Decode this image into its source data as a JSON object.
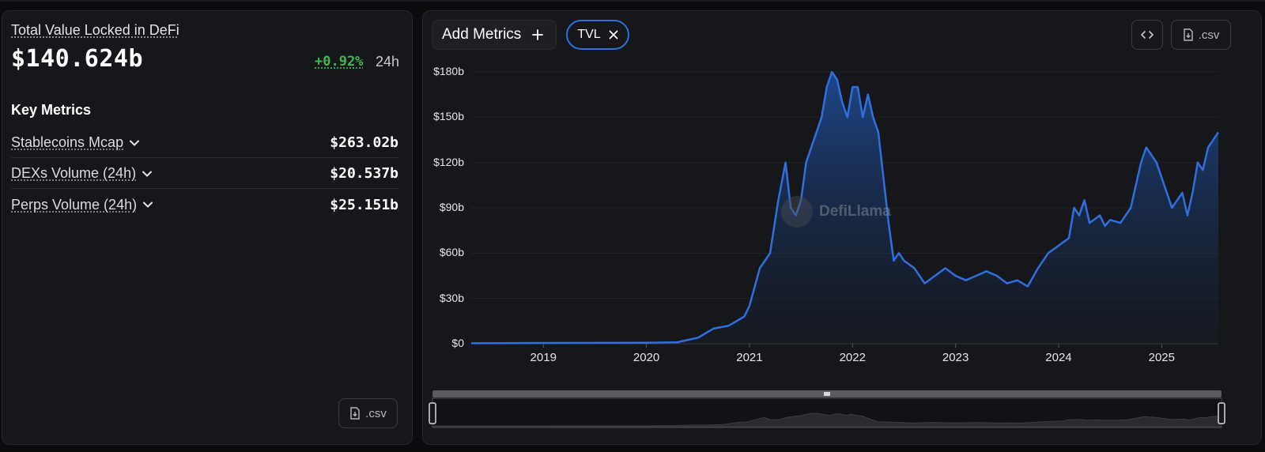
{
  "left_panel": {
    "tvl_label": "Total Value Locked in DeFi",
    "tvl_value": "$140.624b",
    "change": "+0.92%",
    "change_period": "24h",
    "key_metrics_title": "Key Metrics",
    "metrics": [
      {
        "name": "Stablecoins Mcap",
        "value": "$263.02b"
      },
      {
        "name": "DEXs Volume (24h)",
        "value": "$20.537b"
      },
      {
        "name": "Perps Volume (24h)",
        "value": "$25.151b"
      }
    ],
    "csv_label": ".csv"
  },
  "toolbar": {
    "add_metrics_label": "Add Metrics",
    "active_metric": "TVL",
    "csv_label": ".csv"
  },
  "watermark": "DefiLlama",
  "colors": {
    "accent": "#2f6fde",
    "positive": "#3fb84f",
    "background": "#16171a"
  },
  "icons": {
    "chevron": "chevron-down-icon",
    "plus": "plus-icon",
    "close": "close-icon",
    "embed": "code-icon",
    "csv": "file-download-icon"
  },
  "chart_data": {
    "type": "area",
    "title": "",
    "xlabel": "",
    "ylabel": "",
    "series": [
      {
        "name": "TVL",
        "x": [
          2018.3,
          2019.0,
          2019.5,
          2020.0,
          2020.3,
          2020.5,
          2020.65,
          2020.8,
          2020.95,
          2021.0,
          2021.1,
          2021.2,
          2021.28,
          2021.35,
          2021.4,
          2021.45,
          2021.5,
          2021.55,
          2021.6,
          2021.65,
          2021.7,
          2021.75,
          2021.8,
          2021.85,
          2021.9,
          2021.95,
          2022.0,
          2022.05,
          2022.1,
          2022.15,
          2022.2,
          2022.25,
          2022.3,
          2022.35,
          2022.4,
          2022.45,
          2022.5,
          2022.6,
          2022.7,
          2022.8,
          2022.9,
          2023.0,
          2023.1,
          2023.2,
          2023.3,
          2023.4,
          2023.5,
          2023.6,
          2023.7,
          2023.8,
          2023.9,
          2024.0,
          2024.1,
          2024.15,
          2024.2,
          2024.25,
          2024.3,
          2024.4,
          2024.45,
          2024.5,
          2024.6,
          2024.7,
          2024.8,
          2024.85,
          2024.9,
          2024.95,
          2025.0,
          2025.1,
          2025.2,
          2025.25,
          2025.3,
          2025.35,
          2025.4,
          2025.45,
          2025.55
        ],
        "values": [
          0.3,
          0.5,
          0.6,
          0.7,
          1,
          4,
          10,
          12,
          18,
          25,
          50,
          60,
          95,
          120,
          90,
          85,
          95,
          120,
          130,
          140,
          150,
          170,
          180,
          175,
          160,
          150,
          170,
          170,
          150,
          165,
          150,
          140,
          110,
          80,
          55,
          60,
          55,
          50,
          40,
          45,
          50,
          45,
          42,
          45,
          48,
          45,
          40,
          42,
          38,
          50,
          60,
          65,
          70,
          90,
          85,
          95,
          80,
          85,
          78,
          82,
          80,
          90,
          120,
          130,
          125,
          120,
          110,
          90,
          100,
          85,
          100,
          120,
          115,
          130,
          140
        ]
      }
    ],
    "ylim": [
      0,
      180
    ],
    "xlim": [
      2018.3,
      2025.55
    ],
    "yticks": [
      "$0",
      "$30b",
      "$60b",
      "$90b",
      "$120b",
      "$150b",
      "$180b"
    ],
    "ytick_values": [
      0,
      30,
      60,
      90,
      120,
      150,
      180
    ],
    "xticks": [
      "2019",
      "2020",
      "2021",
      "2022",
      "2023",
      "2024",
      "2025"
    ],
    "xtick_values": [
      2019,
      2020,
      2021,
      2022,
      2023,
      2024,
      2025
    ],
    "grid": true,
    "legend": "none"
  }
}
